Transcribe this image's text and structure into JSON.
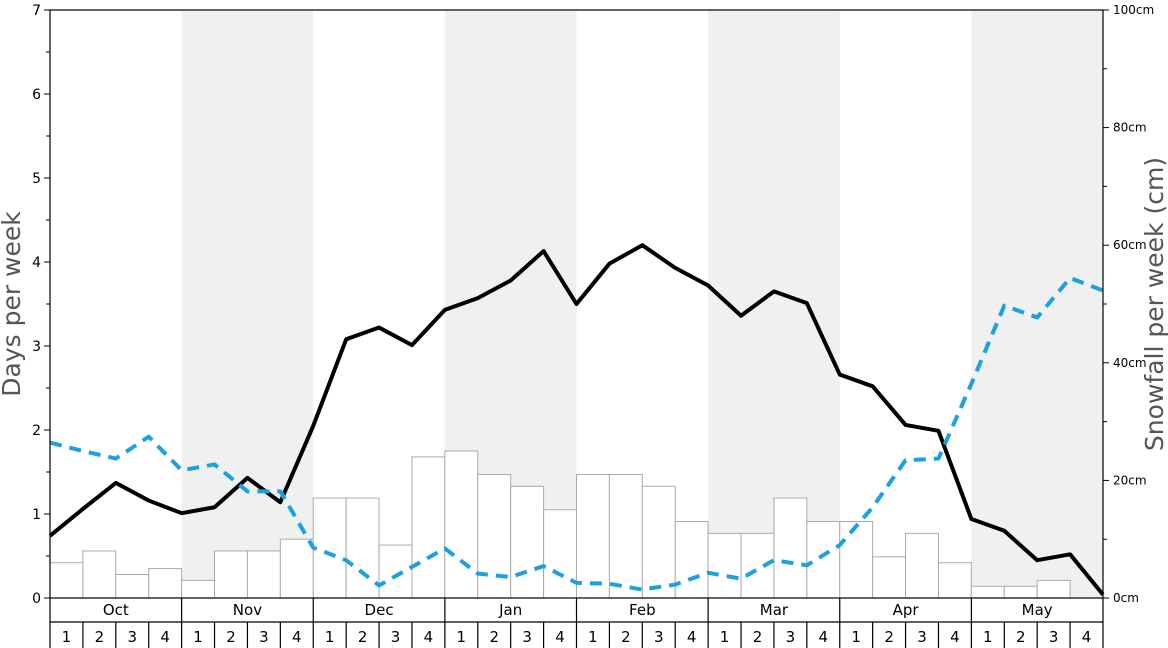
{
  "chart_data": {
    "type": "bar",
    "ylabel": "Days per week",
    "y2label": "Snowfall per week (cm)",
    "ylim": [
      0,
      7
    ],
    "y2lim": [
      0,
      100
    ],
    "y_ticks": [
      0,
      1,
      2,
      3,
      4,
      5,
      6,
      7
    ],
    "y2_ticks": [
      "0cm",
      "20cm",
      "40cm",
      "60cm",
      "80cm",
      "100cm"
    ],
    "y2_tick_values": [
      0,
      20,
      40,
      60,
      80,
      100
    ],
    "months": [
      "Oct",
      "Nov",
      "Dec",
      "Jan",
      "Feb",
      "Mar",
      "Apr",
      "May"
    ],
    "weeks": [
      "1",
      "2",
      "3",
      "4"
    ],
    "shaded_months": [
      "Nov",
      "Jan",
      "Mar",
      "May"
    ],
    "shade_color": "#f0f0f0",
    "series": [
      {
        "kind": "bar",
        "axis": "right",
        "color": "#ffffff",
        "stroke": "#aaaaaa",
        "values": [
          6.0,
          8.0,
          4.0,
          5.0,
          3.0,
          8.0,
          8.0,
          10.0,
          17.0,
          17.0,
          9.0,
          24.0,
          25.0,
          21.0,
          19.0,
          15.0,
          21.0,
          21.0,
          19.0,
          13.0,
          11.0,
          11.0,
          17.0,
          13.0,
          13.0,
          7.0,
          11.0,
          6.0,
          2.0,
          2.0,
          3.0,
          0.0
        ]
      },
      {
        "kind": "line",
        "axis": "left",
        "color": "#000000",
        "dashed": false,
        "values": [
          0.74,
          1.06,
          1.37,
          1.16,
          1.01,
          1.08,
          1.43,
          1.14,
          2.05,
          3.08,
          3.22,
          3.01,
          3.43,
          3.57,
          3.78,
          4.13,
          3.5,
          3.98,
          4.2,
          3.93,
          3.72,
          3.36,
          3.65,
          3.51,
          2.66,
          2.52,
          2.06,
          1.99,
          0.94,
          0.8,
          0.45,
          0.52,
          0.04
        ]
      },
      {
        "kind": "line",
        "axis": "left",
        "color": "#1ba1e2",
        "dashed": true,
        "values": [
          1.85,
          1.75,
          1.66,
          1.92,
          1.52,
          1.59,
          1.27,
          1.27,
          0.6,
          0.45,
          0.15,
          0.37,
          0.59,
          0.29,
          0.25,
          0.38,
          0.18,
          0.17,
          0.1,
          0.16,
          0.3,
          0.23,
          0.45,
          0.39,
          0.63,
          1.08,
          1.64,
          1.66,
          2.55,
          3.48,
          3.34,
          3.81,
          3.66
        ]
      }
    ]
  }
}
